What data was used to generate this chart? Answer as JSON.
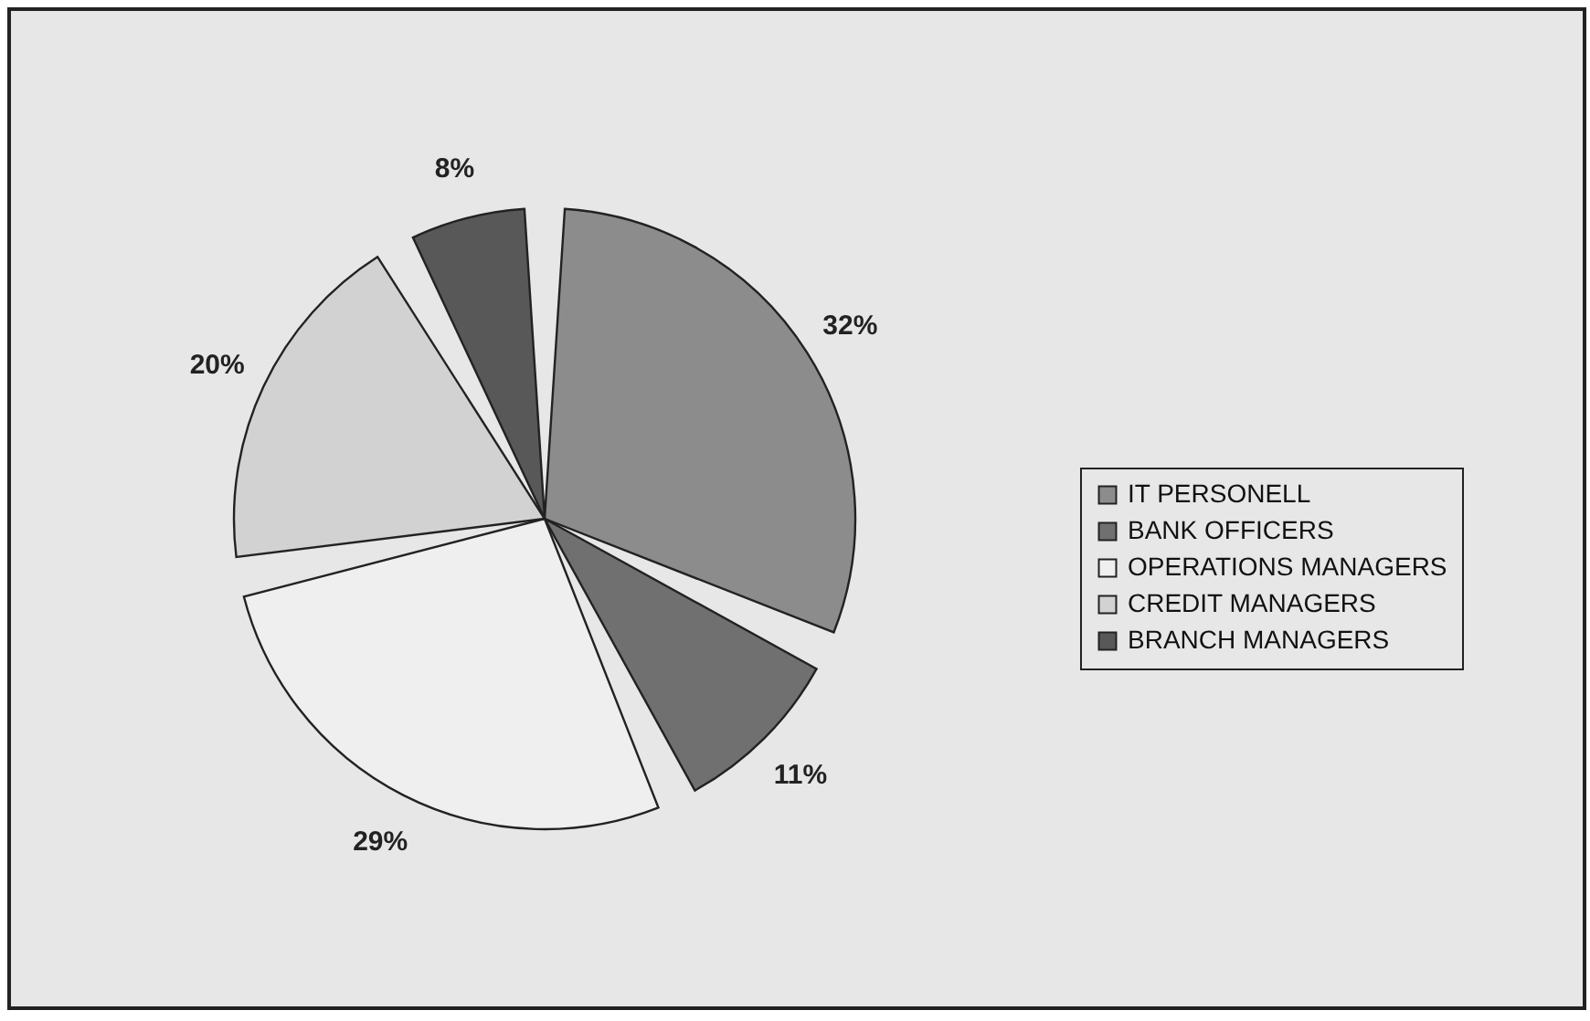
{
  "chart_data": {
    "type": "pie",
    "categories": [
      "IT PERSONELL",
      "BANK OFFICERS",
      "OPERATIONS MANAGERS",
      "CREDIT MANAGERS",
      "BRANCH MANAGERS"
    ],
    "values": [
      32,
      11,
      29,
      20,
      8
    ],
    "value_labels": [
      "32%",
      "11%",
      "29%",
      "20%",
      "8%"
    ],
    "colors": [
      "#8c8c8c",
      "#707070",
      "#efefef",
      "#d2d2d2",
      "#585858"
    ],
    "legend": "right"
  }
}
